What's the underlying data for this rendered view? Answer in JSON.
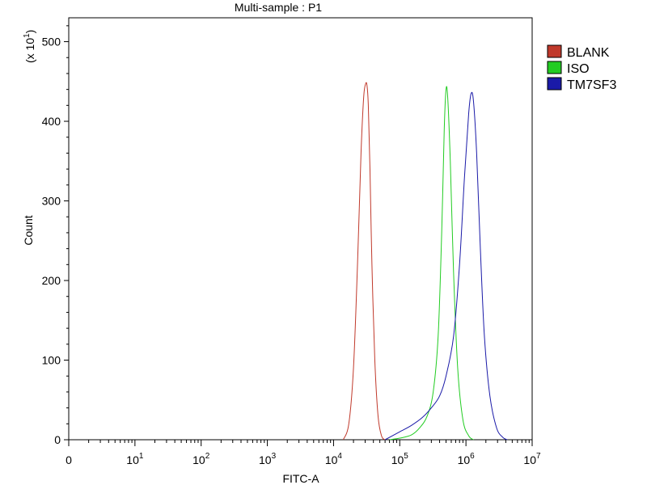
{
  "chart_data": {
    "type": "line",
    "title": "Multi-sample : P1",
    "xlabel": "FITC-A",
    "ylabel": "Count",
    "y_multiplier_label": "(x 10",
    "y_multiplier_exp": "1",
    "y_multiplier_close": ")",
    "x_scale": "log",
    "xlim": [
      1,
      10000000
    ],
    "ylim": [
      0,
      530
    ],
    "y_ticks": [
      0,
      100,
      200,
      300,
      400,
      500
    ],
    "y_tick_labels": [
      "0",
      "100",
      "200",
      "300",
      "400",
      "500"
    ],
    "x_ticks": [
      {
        "value": 1,
        "base": "0",
        "exp": ""
      },
      {
        "value": 10,
        "base": "10",
        "exp": "1"
      },
      {
        "value": 100,
        "base": "10",
        "exp": "2"
      },
      {
        "value": 1000,
        "base": "10",
        "exp": "3"
      },
      {
        "value": 10000,
        "base": "10",
        "exp": "4"
      },
      {
        "value": 100000,
        "base": "10",
        "exp": "5"
      },
      {
        "value": 1000000,
        "base": "10",
        "exp": "6"
      },
      {
        "value": 10000000,
        "base": "10",
        "exp": "7"
      }
    ],
    "legend_position": "right",
    "series": [
      {
        "name": "BLANK",
        "color": "#c0392b",
        "x": [
          14000,
          17000,
          20000,
          23000,
          26000,
          28500,
          30500,
          32000,
          33500,
          35500,
          38000,
          42000,
          47000,
          53000,
          60000
        ],
        "y": [
          0,
          20,
          90,
          220,
          360,
          430,
          447,
          445,
          420,
          340,
          220,
          100,
          30,
          5,
          0
        ]
      },
      {
        "name": "ISO",
        "color": "#22cc22",
        "x": [
          70000,
          100000,
          150000,
          200000,
          260000,
          320000,
          380000,
          430000,
          470000,
          500000,
          530000,
          580000,
          650000,
          750000,
          900000,
          1100000,
          1300000
        ],
        "y": [
          0,
          2,
          6,
          15,
          30,
          60,
          130,
          260,
          390,
          440,
          430,
          350,
          210,
          90,
          25,
          5,
          0
        ]
      },
      {
        "name": "TM7SF3",
        "color": "#1a1aa8",
        "x": [
          60000,
          100000,
          150000,
          220000,
          300000,
          400000,
          500000,
          650000,
          800000,
          950000,
          1100000,
          1200000,
          1300000,
          1450000,
          1650000,
          1900000,
          2300000,
          2900000,
          3600000,
          4200000
        ],
        "y": [
          0,
          10,
          18,
          28,
          40,
          55,
          80,
          130,
          220,
          330,
          410,
          435,
          425,
          360,
          240,
          130,
          55,
          15,
          3,
          0
        ]
      }
    ]
  }
}
